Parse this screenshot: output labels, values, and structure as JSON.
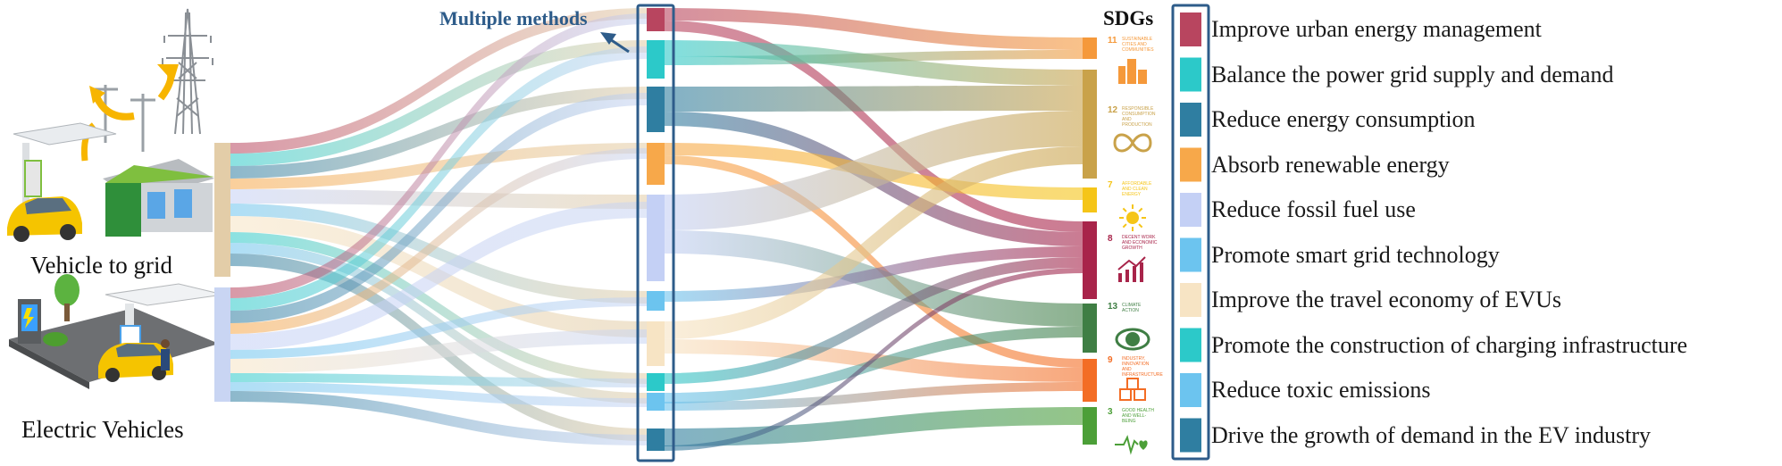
{
  "figure": {
    "methods_label": "Multiple methods",
    "sdgs_title": "SDGs",
    "sources": [
      {
        "id": "v2g",
        "label": "Vehicle to grid"
      },
      {
        "id": "ev",
        "label": "Electric Vehicles"
      }
    ],
    "methods": [
      {
        "label": "Improve urban energy management",
        "color": "#b8455f"
      },
      {
        "label": "Balance the power grid supply and demand",
        "color": "#2cc9c9"
      },
      {
        "label": "Reduce energy consumption",
        "color": "#2f7ea1"
      },
      {
        "label": "Absorb renewable energy",
        "color": "#f7a84a"
      },
      {
        "label": "Reduce fossil fuel use",
        "color": "#c4d0f5"
      },
      {
        "label": "Promote smart grid technology",
        "color": "#6cc4ef"
      },
      {
        "label": "Improve the travel economy of EVUs",
        "color": "#f7e4c4"
      },
      {
        "label": "Promote the construction of charging infrastructure",
        "color": "#2cc9c9"
      },
      {
        "label": "Reduce toxic emissions",
        "color": "#6cc4ef"
      },
      {
        "label": "Drive the growth of demand in the EV industry",
        "color": "#2f7ea1"
      }
    ],
    "sdgs": [
      {
        "num": "11",
        "text": "Sustainable cities and communities",
        "color": "#f5993b",
        "icon": "city-icon"
      },
      {
        "num": "12",
        "text": "Responsible consumption and production",
        "color": "#c9a24a",
        "icon": "infinity-icon"
      },
      {
        "num": "7",
        "text": "Affordable and clean energy",
        "color": "#f5c518",
        "icon": "sun-icon"
      },
      {
        "num": "8",
        "text": "Decent work and economic growth",
        "color": "#a8244a",
        "icon": "growth-chart-icon"
      },
      {
        "num": "13",
        "text": "Climate action",
        "color": "#3f7e44",
        "icon": "earth-eye-icon"
      },
      {
        "num": "9",
        "text": "Industry, innovation and infrastructure",
        "color": "#f36d25",
        "icon": "cubes-icon"
      },
      {
        "num": "3",
        "text": "Good health and well-being",
        "color": "#4c9f38",
        "icon": "heartbeat-icon"
      }
    ]
  }
}
